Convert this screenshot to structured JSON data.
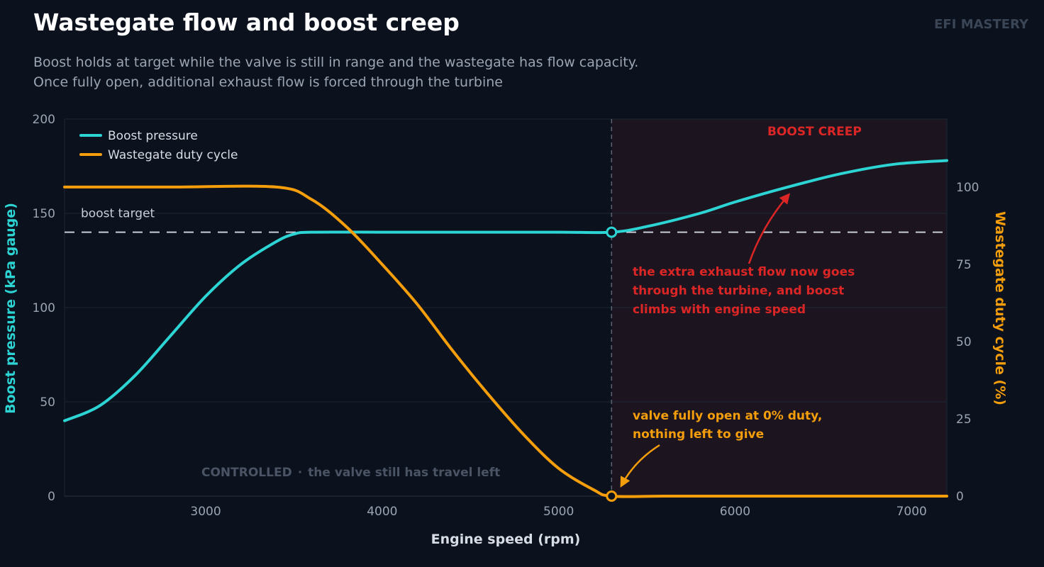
{
  "header": {
    "title": "Wastegate flow and boost creep",
    "brand": "EFI MASTERY",
    "subtitle_line1": "Boost holds at target while the valve is still in range and the wastegate has flow capacity.",
    "subtitle_line2": "Once fully open, additional exhaust flow is forced through the turbine"
  },
  "colors": {
    "background": "#0b111d",
    "boost": "#2dd4d4",
    "duty": "#f59e0b",
    "creep": "#dc2626",
    "grid": "#1c2634",
    "target_line": "#c8ced8"
  },
  "chart_data": {
    "type": "line",
    "xlabel": "Engine speed  (rpm)",
    "ylabel_left": "Boost pressure  (kPa gauge)",
    "ylabel_right": "Wastegate duty cycle  (%)",
    "xlim": [
      2200,
      7200
    ],
    "ylim_left": [
      0,
      200
    ],
    "ylim_right": [
      0,
      122
    ],
    "x_ticks": [
      3000,
      4000,
      5000,
      6000,
      7000
    ],
    "y_ticks_left": [
      0,
      50,
      100,
      150,
      200
    ],
    "y_ticks_right": [
      0,
      25,
      50,
      75,
      100
    ],
    "grid": true,
    "legend_position": "top-left",
    "legend": [
      "Boost pressure",
      "Wastegate duty cycle"
    ],
    "series": [
      {
        "name": "Boost pressure",
        "axis": "left",
        "x": [
          2200,
          2400,
          2600,
          2800,
          3000,
          3200,
          3400,
          3500,
          3600,
          4000,
          4500,
          5000,
          5300,
          5500,
          5800,
          6000,
          6300,
          6600,
          6900,
          7200
        ],
        "y": [
          40,
          48,
          64,
          85,
          106,
          123,
          135,
          139,
          140,
          140,
          140,
          140,
          140,
          143,
          150,
          156,
          164,
          171,
          176,
          178
        ]
      },
      {
        "name": "Wastegate duty cycle",
        "axis": "right",
        "x": [
          2200,
          2800,
          3400,
          3600,
          3800,
          4000,
          4200,
          4400,
          4600,
          4800,
          5000,
          5200,
          5300,
          5600,
          6000,
          6500,
          7200
        ],
        "y": [
          100,
          100,
          100,
          96,
          87,
          75,
          62,
          47,
          33,
          20,
          9,
          2,
          0,
          0,
          0,
          0,
          0
        ]
      }
    ],
    "boost_target": {
      "value": 140,
      "label": "boost target"
    },
    "transition_x": 5300,
    "regions": {
      "controlled_label": "CONTROLLED",
      "controlled_note": "the valve still has travel left",
      "separator": "·",
      "creep_label": "BOOST CREEP"
    },
    "annotations": {
      "creep_line1": "the extra exhaust flow now goes",
      "creep_line2": "through the turbine, and boost",
      "creep_line3": "climbs with engine speed",
      "creep_arrow_to": [
        6300,
        164
      ],
      "valve_line1": "valve fully open at 0% duty,",
      "valve_line2": "nothing left to give",
      "valve_arrow_to": [
        5350,
        0
      ]
    }
  }
}
